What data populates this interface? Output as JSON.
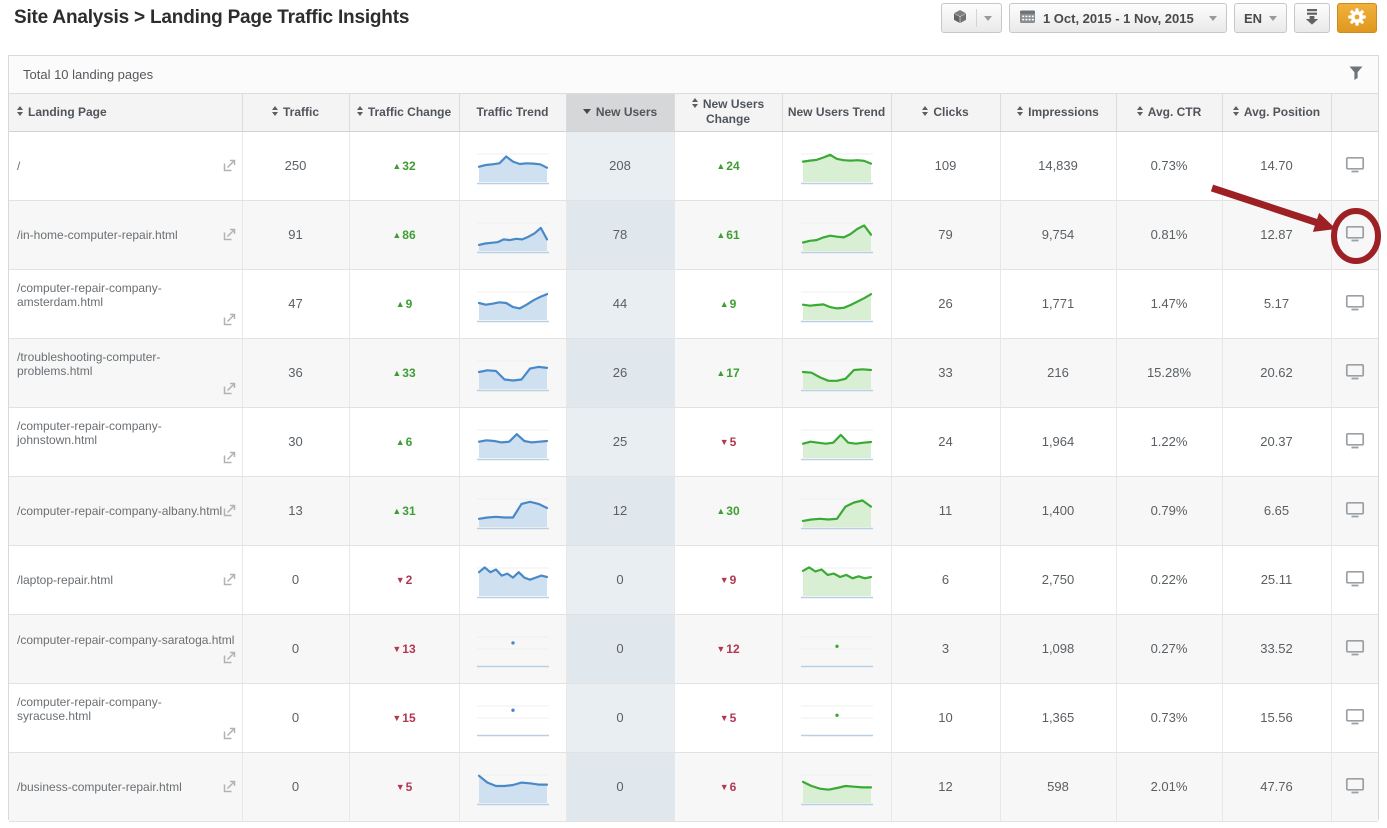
{
  "page": {
    "title": "Site Analysis > Landing Page Traffic Insights"
  },
  "toolbar": {
    "project_selector_icon": "cube-icon",
    "date_range": "1 Oct, 2015 - 1 Nov, 2015",
    "language": "EN",
    "export_icon": "download-icon",
    "settings_icon": "gear-icon"
  },
  "panel": {
    "summary": "Total 10 landing pages",
    "filter_icon": "funnel-icon"
  },
  "colors": {
    "accent_orange": "#e8a32b",
    "positive_green": "#3e9e33",
    "negative_red": "#b23850",
    "spark_blue_line": "#4a89c8",
    "spark_blue_fill": "#cfe0f0",
    "spark_green_line": "#3aaa35",
    "spark_green_fill": "#d9efd4",
    "annotation_red": "#9c2024",
    "sorted_header_bg": "#d5d7d9",
    "new_users_col_tint": "#e9eef2"
  },
  "annotation": {
    "shape": "arrow-and-circle",
    "color": "#9c2024",
    "points_to": "monitor-icon of row /in-home-computer-repair.html"
  },
  "table": {
    "columns": [
      {
        "label": "Landing Page",
        "sortable": true
      },
      {
        "label": "Traffic",
        "sortable": true
      },
      {
        "label": "Traffic Change",
        "sortable": true
      },
      {
        "label": "Traffic Trend",
        "sortable": false
      },
      {
        "label": "New Users",
        "sortable": true,
        "sorted": "desc"
      },
      {
        "label": "New Users Change",
        "sortable": true
      },
      {
        "label": "New Users Trend",
        "sortable": false
      },
      {
        "label": "Clicks",
        "sortable": true
      },
      {
        "label": "Impressions",
        "sortable": true
      },
      {
        "label": "Avg. CTR",
        "sortable": true
      },
      {
        "label": "Avg. Position",
        "sortable": true
      },
      {
        "label": "",
        "sortable": false
      }
    ],
    "rows": [
      {
        "landing_page": "/",
        "traffic": "250",
        "traffic_change": {
          "dir": "up",
          "value": "32"
        },
        "traffic_trend": [
          4.5,
          5,
          5.2,
          5.5,
          7.5,
          6,
          5.3,
          5.5,
          5.4,
          5.2,
          4.2
        ],
        "new_users": "208",
        "new_users_change": {
          "dir": "up",
          "value": "24"
        },
        "new_users_trend": [
          6,
          6.3,
          6.5,
          7.2,
          8,
          6.8,
          6.4,
          6.3,
          6.4,
          6.2,
          5.4
        ],
        "clicks": "109",
        "impressions": "14,839",
        "avg_ctr": "0.73%",
        "avg_position": "14.70"
      },
      {
        "landing_page": "/in-home-computer-repair.html",
        "traffic": "91",
        "traffic_change": {
          "dir": "up",
          "value": "86"
        },
        "traffic_trend": [
          1.8,
          2.2,
          2.4,
          2.6,
          3.4,
          3.2,
          3.6,
          3.4,
          4.2,
          5.2,
          6.8,
          3.4
        ],
        "new_users": "78",
        "new_users_change": {
          "dir": "up",
          "value": "61"
        },
        "new_users_trend": [
          2.5,
          3,
          3.2,
          4,
          4.5,
          4.2,
          4,
          5,
          6.5,
          7.5,
          4.8
        ],
        "clicks": "79",
        "impressions": "9,754",
        "avg_ctr": "0.81%",
        "avg_position": "12.87"
      },
      {
        "landing_page": "/computer-repair-company-amsterdam.html",
        "traffic": "47",
        "traffic_change": {
          "dir": "up",
          "value": "9"
        },
        "traffic_trend": [
          5,
          4.5,
          4.8,
          5.2,
          5,
          3.8,
          3.4,
          4.5,
          5.8,
          6.8,
          7.6
        ],
        "new_users": "44",
        "new_users_change": {
          "dir": "up",
          "value": "9"
        },
        "new_users_trend": [
          4.5,
          4.2,
          4.4,
          4.6,
          3.8,
          3.4,
          3.6,
          4.4,
          5.4,
          6.4,
          7.6
        ],
        "clicks": "26",
        "impressions": "1,771",
        "avg_ctr": "1.47%",
        "avg_position": "5.17"
      },
      {
        "landing_page": "/troubleshooting-computer-problems.html",
        "traffic": "36",
        "traffic_change": {
          "dir": "up",
          "value": "33"
        },
        "traffic_trend": [
          5,
          5.5,
          5.3,
          2.8,
          2.5,
          2.8,
          6,
          6.5,
          6.2
        ],
        "new_users": "26",
        "new_users_change": {
          "dir": "up",
          "value": "17"
        },
        "new_users_trend": [
          5,
          4.8,
          3.4,
          2.4,
          2.4,
          3,
          5.6,
          5.8,
          5.6
        ],
        "clicks": "33",
        "impressions": "216",
        "avg_ctr": "15.28%",
        "avg_position": "20.62"
      },
      {
        "landing_page": "/computer-repair-company-johnstown.html",
        "traffic": "30",
        "traffic_change": {
          "dir": "up",
          "value": "6"
        },
        "traffic_trend": [
          4.8,
          5.2,
          5,
          4.6,
          4.8,
          7,
          5,
          4.6,
          4.8,
          5
        ],
        "new_users": "25",
        "new_users_change": {
          "dir": "down",
          "value": "5"
        },
        "new_users_trend": [
          4.2,
          4.8,
          4.5,
          4.2,
          4.5,
          6.8,
          4.5,
          4.2,
          4.5,
          4.7
        ],
        "clicks": "24",
        "impressions": "1,964",
        "avg_ctr": "1.22%",
        "avg_position": "20.37"
      },
      {
        "landing_page": "/computer-repair-company-albany.html",
        "traffic": "13",
        "traffic_change": {
          "dir": "up",
          "value": "31"
        },
        "traffic_trend": [
          2.4,
          2.8,
          3,
          2.8,
          2.8,
          6.8,
          7.4,
          6.8,
          5.6
        ],
        "new_users": "12",
        "new_users_change": {
          "dir": "up",
          "value": "30"
        },
        "new_users_trend": [
          1.8,
          2.2,
          2.4,
          2.2,
          2.4,
          6,
          7.2,
          7.8,
          6
        ],
        "clicks": "11",
        "impressions": "1,400",
        "avg_ctr": "0.79%",
        "avg_position": "6.65"
      },
      {
        "landing_page": "/laptop-repair.html",
        "traffic": "0",
        "traffic_change": {
          "dir": "down",
          "value": "2"
        },
        "traffic_trend": [
          7,
          8.4,
          7,
          7.8,
          6,
          6.6,
          5.4,
          7,
          5.4,
          4.8,
          5.4,
          6,
          5.6
        ],
        "new_users": "0",
        "new_users_change": {
          "dir": "down",
          "value": "9"
        },
        "new_users_trend": [
          7.4,
          8.4,
          7.2,
          7.8,
          6.2,
          6.6,
          5.6,
          6.2,
          5.2,
          5.8,
          5.2,
          5.6
        ],
        "clicks": "6",
        "impressions": "2,750",
        "avg_ctr": "0.22%",
        "avg_position": "25.11"
      },
      {
        "landing_page": "/computer-repair-company-saratoga.html",
        "traffic": "0",
        "traffic_change": {
          "dir": "down",
          "value": "13"
        },
        "traffic_trend": [
          6.5
        ],
        "new_users": "0",
        "new_users_change": {
          "dir": "down",
          "value": "12"
        },
        "new_users_trend": [
          5.5
        ],
        "clicks": "3",
        "impressions": "1,098",
        "avg_ctr": "0.27%",
        "avg_position": "33.52"
      },
      {
        "landing_page": "/computer-repair-company-syracuse.html",
        "traffic": "0",
        "traffic_change": {
          "dir": "down",
          "value": "15"
        },
        "traffic_trend": [
          7
        ],
        "new_users": "0",
        "new_users_change": {
          "dir": "down",
          "value": "5"
        },
        "new_users_trend": [
          5.5
        ],
        "clicks": "10",
        "impressions": "1,365",
        "avg_ctr": "0.73%",
        "avg_position": "15.56"
      },
      {
        "landing_page": "/business-computer-repair.html",
        "traffic": "0",
        "traffic_change": {
          "dir": "down",
          "value": "5"
        },
        "traffic_trend": [
          8,
          6,
          5,
          5,
          5.3,
          6,
          5.8,
          5.4,
          5.4
        ],
        "new_users": "0",
        "new_users_change": {
          "dir": "down",
          "value": "6"
        },
        "new_users_trend": [
          6.2,
          5,
          4.2,
          3.9,
          4.4,
          5,
          4.8,
          4.6,
          4.6
        ],
        "clicks": "12",
        "impressions": "598",
        "avg_ctr": "2.01%",
        "avg_position": "47.76"
      }
    ]
  }
}
